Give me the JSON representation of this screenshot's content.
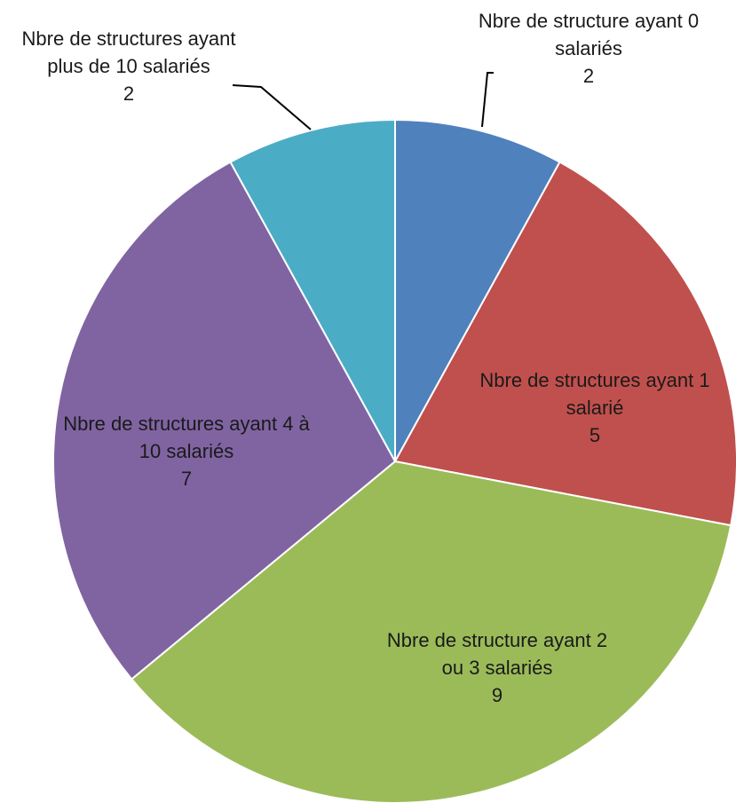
{
  "chart_data": {
    "type": "pie",
    "categories": [
      "Nbre de structure ayant 0 salariés",
      "Nbre de structures ayant 1 salarié",
      "Nbre de structure ayant 2 ou 3 salariés",
      "Nbre de structures ayant 4 à 10 salariés",
      "Nbre de structures ayant plus de 10 salariés"
    ],
    "values": [
      2,
      5,
      9,
      7,
      2
    ],
    "colors": [
      "#4f81bd",
      "#c0504d",
      "#9bbb59",
      "#8064a2",
      "#4bacc6"
    ]
  }
}
